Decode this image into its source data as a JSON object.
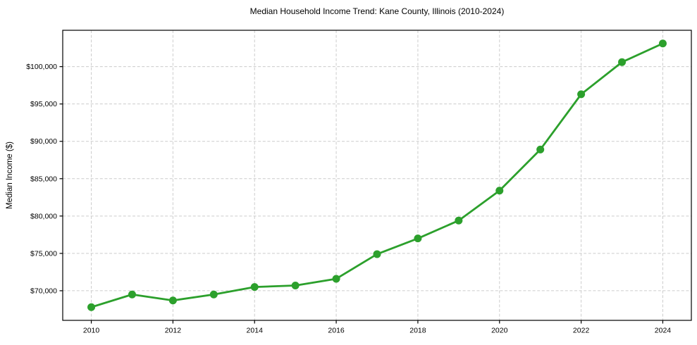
{
  "chart_data": {
    "type": "line",
    "title": "Median Household Income Trend: Kane County, Illinois (2010-2024)",
    "xlabel": "",
    "ylabel": "Median Income ($)",
    "series_name": "Median Household Income",
    "x": [
      2010,
      2011,
      2012,
      2013,
      2014,
      2015,
      2016,
      2017,
      2018,
      2019,
      2020,
      2021,
      2022,
      2023,
      2024
    ],
    "values": [
      67800,
      69500,
      68700,
      69500,
      70500,
      70700,
      71600,
      74900,
      77000,
      79400,
      83400,
      88900,
      96300,
      100600,
      103100
    ],
    "x_ticks": [
      2010,
      2012,
      2014,
      2016,
      2018,
      2020,
      2022,
      2024
    ],
    "y_ticks": [
      70000,
      75000,
      80000,
      85000,
      90000,
      95000,
      100000
    ],
    "y_tick_prefix": "$",
    "xlim": [
      2009.3,
      2024.7
    ],
    "ylim": [
      66035,
      104865
    ],
    "grid": true,
    "grid_style": "dashed",
    "grid_color": "#cccccc",
    "legend_position": "none",
    "line_color": "#2ca02c",
    "marker": "circle",
    "axis_color": "#000000",
    "background_color": "#ffffff"
  }
}
